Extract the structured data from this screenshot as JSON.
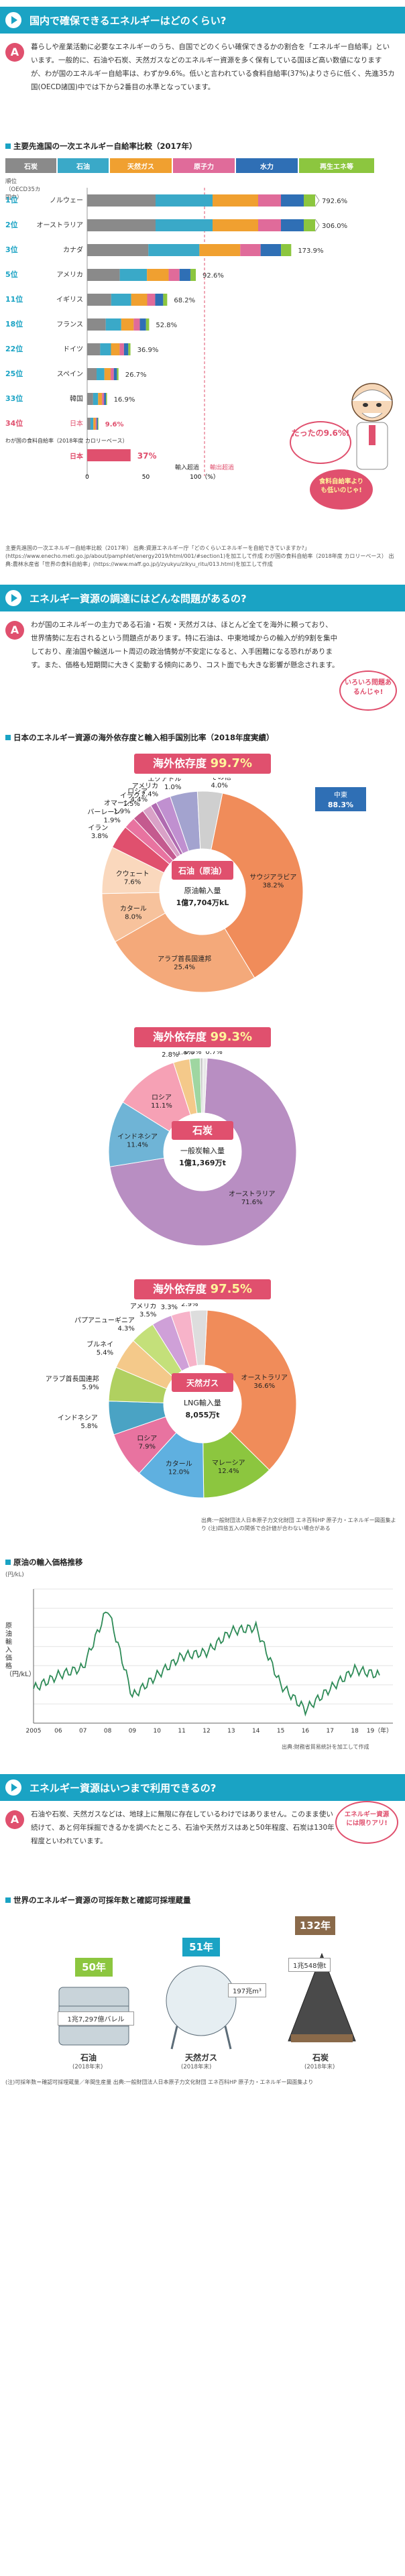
{
  "sec1": {
    "title": "国内で確保できるエネルギーはどのくらい?",
    "answer_mark": "A",
    "text": "暮らしや産業活動に必要なエネルギーのうち、自国でどのくらい確保できるかの割合を「エネルギー自給率」といいます。一般的に、石油や石炭、天然ガスなどのエネルギー資源を多く保有している国ほど高い数値になりますが、わが国のエネルギー自給率は、わずか9.6%。低いと言われている食料自給率(37%)よりさらに低く、先進35カ国(OECD諸国)中では下から2番目の水準となっています。"
  },
  "chart1": {
    "title": "主要先進国の一次エネルギー自給率比較（2017年）",
    "legend": [
      "石炭",
      "石油",
      "天然ガス",
      "原子力",
      "水力",
      "再生エネ等"
    ],
    "legend_colors": [
      "#8a8a8a",
      "#3aa9c8",
      "#f0a030",
      "#e06b9a",
      "#2f6fb5",
      "#8cc63f"
    ],
    "rank_header": "順位（OECD35カ国中）",
    "rows": [
      {
        "rank": "1位",
        "country": "ノルウェー",
        "value": "792.6%"
      },
      {
        "rank": "2位",
        "country": "オーストラリア",
        "value": "306.0%"
      },
      {
        "rank": "3位",
        "country": "カナダ",
        "value": "173.9%"
      },
      {
        "rank": "5位",
        "country": "アメリカ",
        "value": "92.6%"
      },
      {
        "rank": "11位",
        "country": "イギリス",
        "value": "68.2%"
      },
      {
        "rank": "18位",
        "country": "フランス",
        "value": "52.8%"
      },
      {
        "rank": "22位",
        "country": "ドイツ",
        "value": "36.9%"
      },
      {
        "rank": "25位",
        "country": "スペイン",
        "value": "26.7%"
      },
      {
        "rank": "33位",
        "country": "韓国",
        "value": "16.9%"
      },
      {
        "rank": "34位",
        "country": "日本",
        "value": "9.6%"
      }
    ],
    "food_label": "わが国の食料自給率（2018年度 カロリーベース）",
    "food_country": "日本",
    "food_value": "37%",
    "axis_import": "輸入超過",
    "axis_export": "輸出超過",
    "axis_ticks": [
      "0",
      "50",
      "100（%）"
    ],
    "bubble_text": "たったの9.6%!",
    "bubble2_text": "食料自給率よりも低いのじゃ!",
    "source": "主要先進国の一次エネルギー自給率比較（2017年） 出典:資源エネルギー庁「どのくらいエネルギーを自給できていますか?」(https://www.enecho.meti.go.jp/about/pamphlet/energy2019/html/001/#section1)を加工して作成 わが国の食料自給率（2018年度 カロリーベース） 出典:農林水産省「世界の食料自給率」(https://www.maff.go.jp/j/zyukyu/zikyu_ritu/013.html)を加工して作成"
  },
  "sec2": {
    "title": "エネルギー資源の調達にはどんな問題があるの?",
    "answer_mark": "A",
    "text": "わが国のエネルギーの主力である石油・石炭・天然ガスは、ほとんど全てを海外に頼っており、世界情勢に左右されるという問題点があります。特に石油は、中東地域からの輸入が約9割を集中しており、産油国や輸送ルート周辺の政治情勢が不安定になると、入手困難になる恐れがあります。また、価格も短期間に大きく変動する傾向にあり、コスト面でも大きな影響が懸念されます。",
    "bubble_text": "いろいろ問題あるんじゃ!"
  },
  "chart2": {
    "title": "日本のエネルギー資源の海外依存度と輸入相手国別比率（2018年度実績）",
    "donuts": [
      {
        "header_prefix": "海外依存度",
        "header_value": "99.7%",
        "center_name": "石油（原油）",
        "center_sub": "原油輸入量",
        "center_amount": "1億7,704万kL",
        "slices": [
          {
            "label": "サウジアラビア",
            "value": 38.2
          },
          {
            "label": "アラブ首長国連邦",
            "value": 25.4
          },
          {
            "label": "カタール",
            "value": 8.0
          },
          {
            "label": "クウェート",
            "value": 7.6
          },
          {
            "label": "イラン",
            "value": 3.8
          },
          {
            "label": "バーレーン",
            "value": 1.9
          },
          {
            "label": "オマーン",
            "value": 1.9
          },
          {
            "label": "イラク",
            "value": 1.5
          },
          {
            "label": "エクアドル",
            "value": 1.0
          },
          {
            "label": "アメリカ",
            "value": 2.4
          },
          {
            "label": "ロシア",
            "value": 4.4
          },
          {
            "label": "その他",
            "value": 4.0
          }
        ],
        "labels": [
          "サウジアラビア 38.2%",
          "アラブ首長国連邦 25.4%",
          "カタール 8.0%",
          "クウェート 7.6%",
          "イラン 3.8%",
          "バーレーン 1.9%",
          "オマーン 1.9%",
          "イラク 1.5%",
          "ロシア 4.4%",
          "アメリカ 2.4%",
          "エクアドル 1.0%",
          "その他 4.0%"
        ],
        "mideast": "中東 88.3%"
      },
      {
        "header_prefix": "海外依存度",
        "header_value": "99.3%",
        "center_name": "石炭",
        "center_sub": "一般炭輸入量",
        "center_amount": "1億1,369万t",
        "slices": [
          {
            "label": "オーストラリア",
            "value": 71.6
          },
          {
            "label": "インドネシア",
            "value": 11.4
          },
          {
            "label": "ロシア",
            "value": 11.1
          },
          {
            "label": "アメリカ",
            "value": 2.8
          },
          {
            "label": "カナダ",
            "value": 1.8
          },
          {
            "label": "中国",
            "value": 0.5
          },
          {
            "label": "その他",
            "value": 0.7
          }
        ],
        "labels": [
          "オーストラリア 71.6%",
          "インドネシア 11.4%",
          "ロシア 11.1%",
          "アメリカ 2.8%",
          "カナダ 1.8%",
          "中国 0.5%",
          "その他 0.7%"
        ]
      },
      {
        "header_prefix": "海外依存度",
        "header_value": "97.5%",
        "center_name": "天然ガス",
        "center_sub": "LNG輸入量",
        "center_amount": "8,055万t",
        "slices": [
          {
            "label": "オーストラリア",
            "value": 36.6
          },
          {
            "label": "マレーシア",
            "value": 12.4
          },
          {
            "label": "カタール",
            "value": 12.0
          },
          {
            "label": "ロシア",
            "value": 7.9
          },
          {
            "label": "インドネシア",
            "value": 5.8
          },
          {
            "label": "アラブ首長国連邦",
            "value": 5.9
          },
          {
            "label": "ブルネイ",
            "value": 5.4
          },
          {
            "label": "パプアニューギニア",
            "value": 4.3
          },
          {
            "label": "アメリカ",
            "value": 3.5
          },
          {
            "label": "オマーン",
            "value": 3.3
          },
          {
            "label": "その他",
            "value": 2.9
          }
        ],
        "labels": [
          "オーストラリア 36.6%",
          "マレーシア 12.4%",
          "カタール 12.0%",
          "ロシア 7.9%",
          "インドネシア 5.8%",
          "アラブ首長国連邦 5.9%",
          "ブルネイ 5.4%",
          "パプアニューギニア 4.3%",
          "アメリカ 3.5%",
          "オマーン 3.3%",
          "その他 2.9%"
        ]
      }
    ],
    "source": "出典:一般財団法人日本原子力文化財団 エネ百科HP 原子力・エネルギー図面集より (注)四捨五入の関係で合計値が合わない場合がある"
  },
  "chart3": {
    "title": "原油の輸入価格推移",
    "ylabel": "原油輸入価格（円/kL）",
    "yunit": "(円/kL)",
    "xticks": [
      "2005",
      "06",
      "07",
      "08",
      "09",
      "10",
      "11",
      "12",
      "13",
      "14",
      "15",
      "16",
      "17",
      "18",
      "19（年）"
    ],
    "source": "出典:財務省貿易統計を加工して作成",
    "chart_data": {
      "type": "line",
      "x": [
        "2005",
        "06",
        "07",
        "08",
        "09",
        "10",
        "11",
        "12",
        "13",
        "14",
        "15",
        "16",
        "17",
        "18",
        "19"
      ],
      "series": [
        {
          "values": [
            38000,
            45000,
            49000,
            80000,
            34000,
            45000,
            55000,
            57000,
            68000,
            70000,
            40000,
            27000,
            38000,
            48000,
            45000
          ]
        }
      ]
    }
  },
  "sec3": {
    "title": "エネルギー資源はいつまで利用できるの?",
    "answer_mark": "A",
    "text": "石油や石炭、天然ガスなどは、地球上に無限に存在しているわけではありません。このまま使い続けて、あと何年採掘できるかを調べたところ、石油や天然ガスはあと50年程度、石炭は130年程度といわれています。",
    "bubble_text": "エネルギー資源には限りアリ!"
  },
  "chart4": {
    "title": "世界のエネルギー資源の可採年数と確認可採埋蔵量",
    "items": [
      {
        "name": "石油",
        "year": "(2018年末)",
        "years": "50年",
        "amount": "1兆7,297億バレル"
      },
      {
        "name": "天然ガス",
        "year": "(2018年末)",
        "years": "51年",
        "amount": "197兆m³"
      },
      {
        "name": "石炭",
        "year": "(2018年末)",
        "years": "132年",
        "amount": "1兆548億t"
      }
    ],
    "note": "(注)可採年数＝確認可採埋蔵量／年間生産量 出典:一般財団法人日本原子力文化財団 エネ百科HP 原子力・エネルギー図面集より"
  }
}
